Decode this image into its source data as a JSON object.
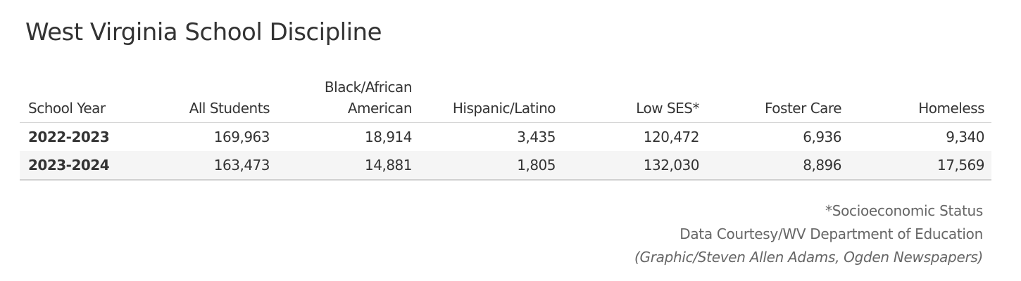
{
  "title": "West Virginia School Discipline",
  "chart_data": {
    "type": "table",
    "title": "West Virginia School Discipline",
    "columns": [
      "School Year",
      "All Students",
      "Black/African American",
      "Hispanic/Latino",
      "Low SES*",
      "Foster Care",
      "Homeless"
    ],
    "rows": [
      [
        "2022-2023",
        "169,963",
        "18,914",
        "3,435",
        "120,472",
        "6,936",
        "9,340"
      ],
      [
        "2023-2024",
        "163,473",
        "14,881",
        "1,805",
        "132,030",
        "8,896",
        "17,569"
      ]
    ]
  },
  "header_lines": {
    "black_line1": "Black/African",
    "black_line2": "American"
  },
  "notes": {
    "footnote": "*Socioeconomic Status",
    "source": "Data Courtesy/WV Department of Education",
    "credit": "(Graphic/Steven Allen Adams, Ogden Newspapers)"
  }
}
